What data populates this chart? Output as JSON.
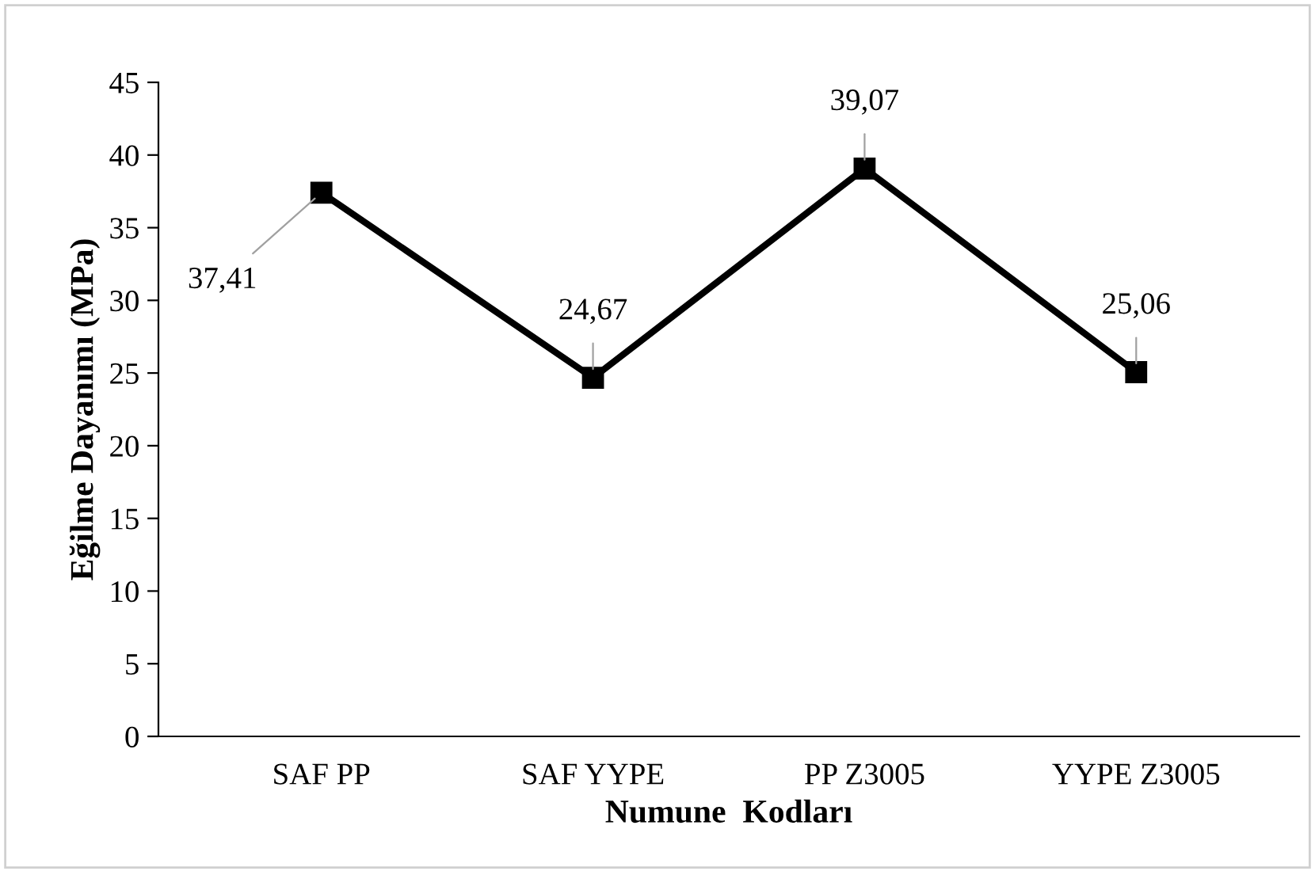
{
  "chart_data": {
    "type": "line",
    "xlabel": "Numune  Kodları",
    "ylabel": "Eğilme Dayanımı (MPa)",
    "categories": [
      "SAF PP",
      "SAF YYPE",
      "PP Z3005",
      "YYPE Z3005"
    ],
    "series": [
      {
        "color": "#000000",
        "values": [
          37.41,
          24.67,
          39.07,
          25.06
        ],
        "value_labels": [
          "37,41",
          "24,67",
          "39,07",
          "25,06"
        ]
      }
    ],
    "ylim": [
      0,
      45
    ],
    "yticks": [
      0,
      5,
      10,
      15,
      20,
      25,
      30,
      35,
      40,
      45
    ],
    "grid": false,
    "legend": false,
    "marker": "square",
    "line_style": "solid"
  }
}
